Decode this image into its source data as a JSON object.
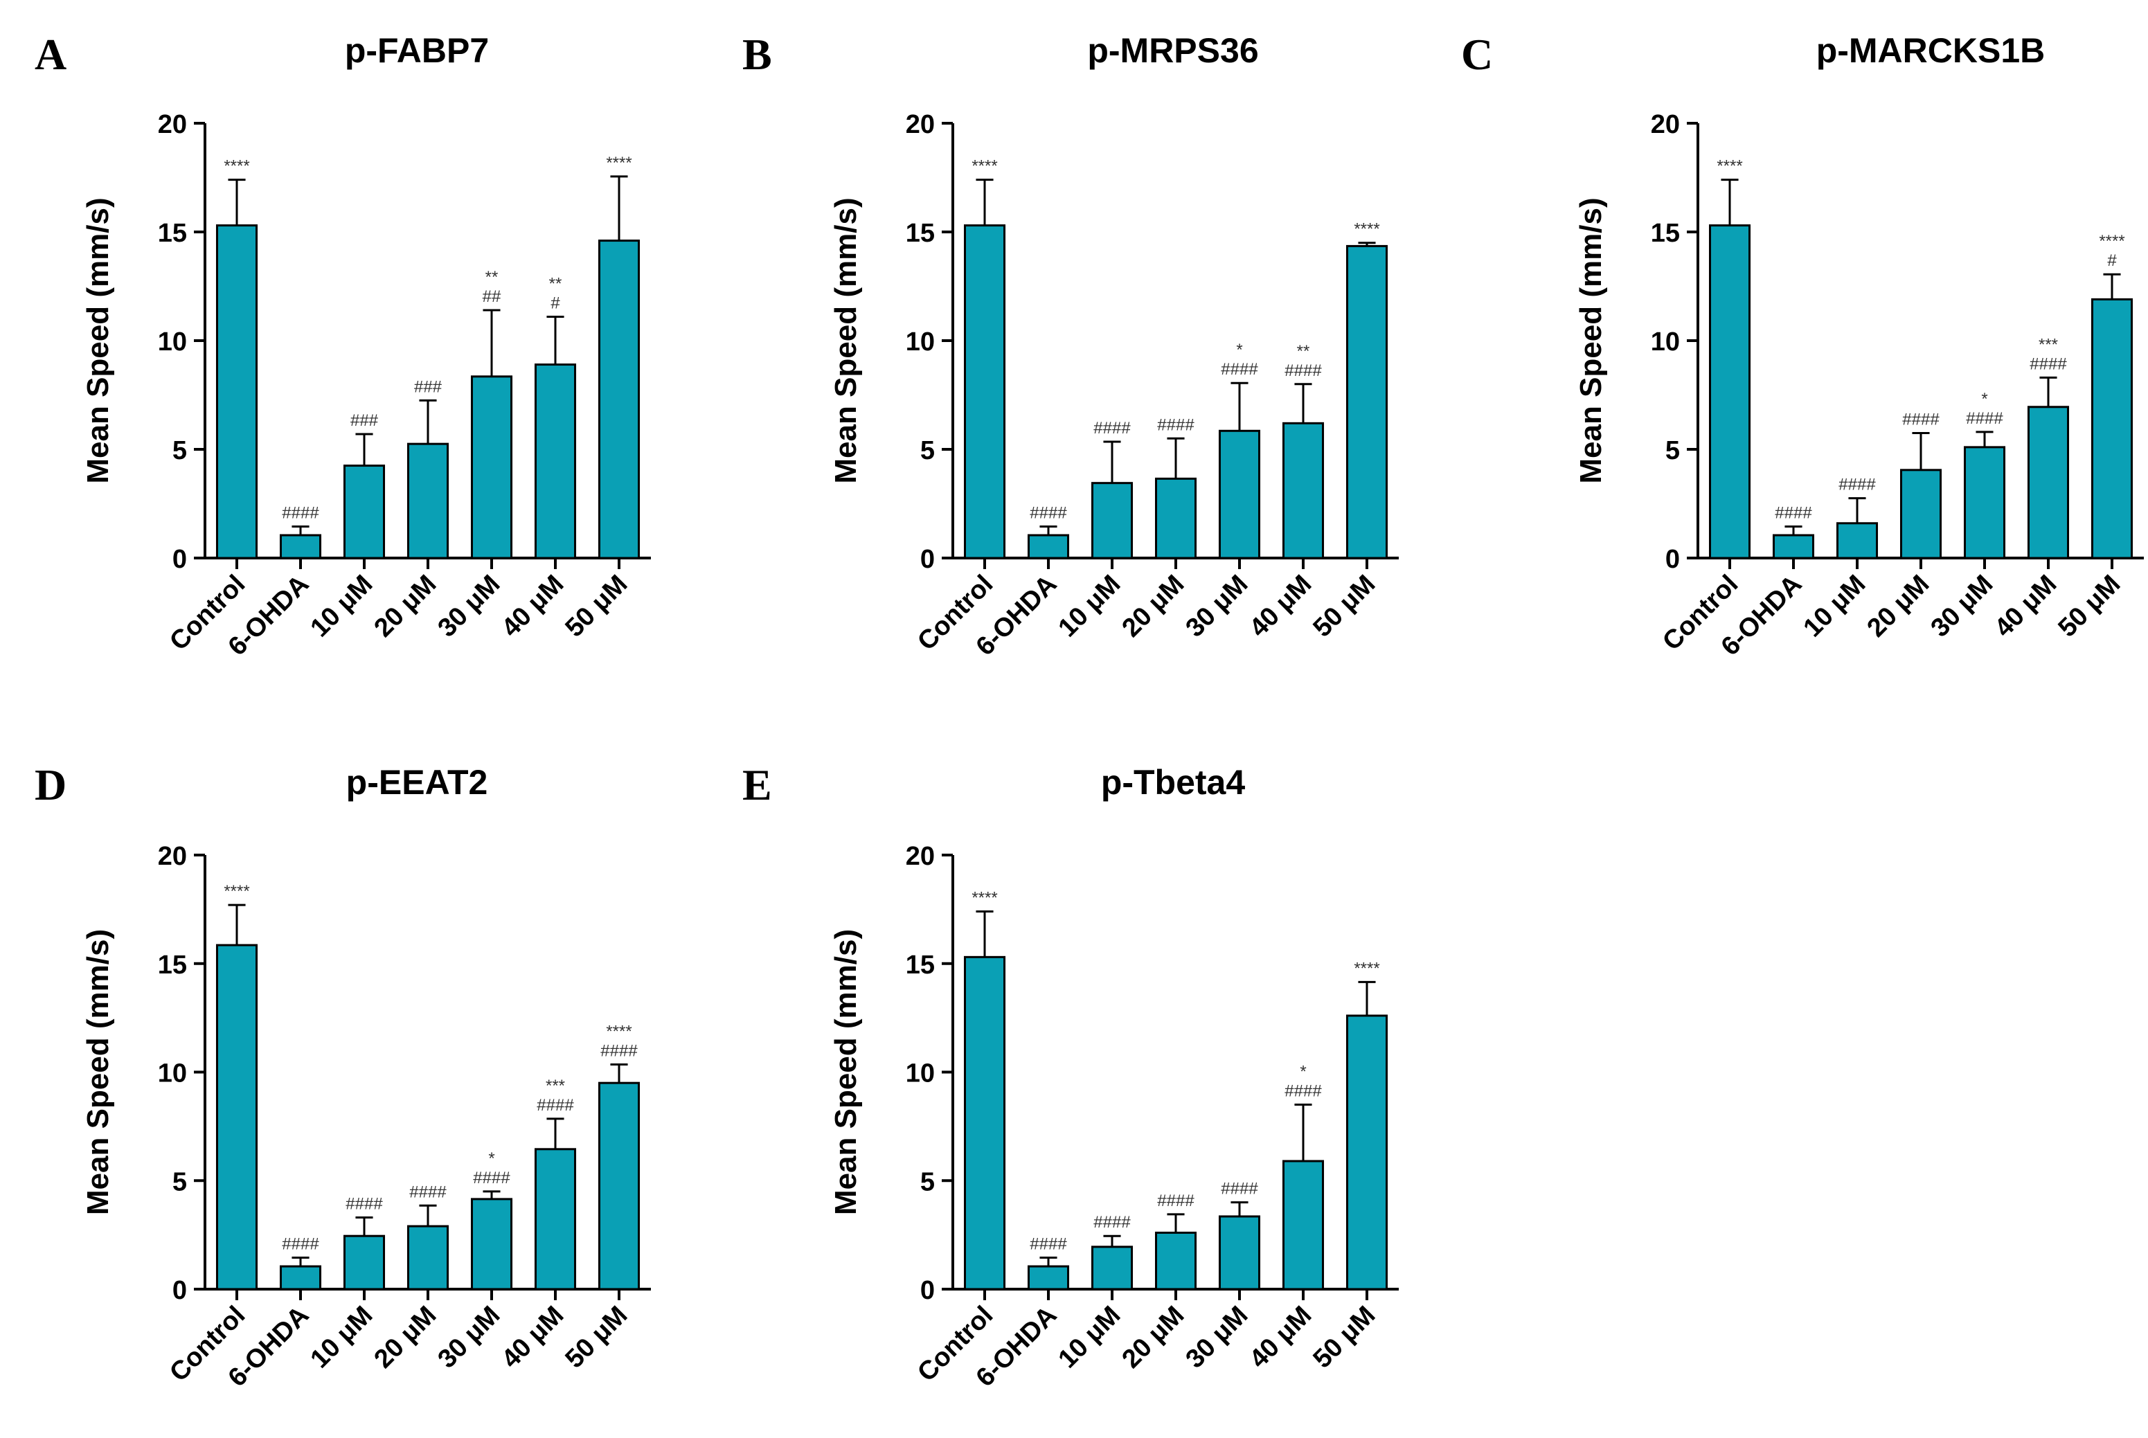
{
  "figure": {
    "background": "#ffffff",
    "bar_color": "#0aa0b5"
  },
  "chart_data": [
    {
      "panel": "A",
      "type": "bar",
      "title": "p-FABP7",
      "ylabel": "Mean Speed (mm/s)",
      "xlabel": "",
      "ylim": [
        0,
        20
      ],
      "yticks": [
        0,
        5,
        10,
        15,
        20
      ],
      "categories": [
        "Control",
        "6-OHDA",
        "10 μM",
        "20 μM",
        "30 μM",
        "40 μM",
        "50 μM"
      ],
      "values": [
        15.3,
        1.05,
        4.25,
        5.25,
        8.35,
        8.9,
        14.6
      ],
      "errors": [
        2.1,
        0.4,
        1.45,
        2.0,
        3.05,
        2.2,
        2.95
      ],
      "annotations": [
        [
          "****"
        ],
        [
          "####"
        ],
        [
          "###"
        ],
        [
          "###"
        ],
        [
          "**",
          "##"
        ],
        [
          "**",
          "#"
        ],
        [
          "****"
        ]
      ]
    },
    {
      "panel": "B",
      "type": "bar",
      "title": "p-MRPS36",
      "ylabel": "Mean Speed (mm/s)",
      "xlabel": "",
      "ylim": [
        0,
        20
      ],
      "yticks": [
        0,
        5,
        10,
        15,
        20
      ],
      "categories": [
        "Control",
        "6-OHDA",
        "10 μM",
        "20 μM",
        "30 μM",
        "40 μM",
        "50 μM"
      ],
      "values": [
        15.3,
        1.05,
        3.45,
        3.65,
        5.85,
        6.2,
        14.35
      ],
      "errors": [
        2.1,
        0.4,
        1.9,
        1.85,
        2.2,
        1.8,
        0.15
      ],
      "annotations": [
        [
          "****"
        ],
        [
          "####"
        ],
        [
          "####"
        ],
        [
          "####"
        ],
        [
          "*",
          "####"
        ],
        [
          "**",
          "####"
        ],
        [
          "****"
        ]
      ]
    },
    {
      "panel": "C",
      "type": "bar",
      "title": "p-MARCKS1B",
      "ylabel": "Mean Speed (mm/s)",
      "xlabel": "",
      "ylim": [
        0,
        20
      ],
      "yticks": [
        0,
        5,
        10,
        15,
        20
      ],
      "categories": [
        "Control",
        "6-OHDA",
        "10 μM",
        "20 μM",
        "30 μM",
        "40 μM",
        "50 μM"
      ],
      "values": [
        15.3,
        1.05,
        1.6,
        4.05,
        5.1,
        6.95,
        11.9
      ],
      "errors": [
        2.1,
        0.4,
        1.15,
        1.7,
        0.7,
        1.35,
        1.15
      ],
      "annotations": [
        [
          "****"
        ],
        [
          "####"
        ],
        [
          "####"
        ],
        [
          "####"
        ],
        [
          "*",
          "####"
        ],
        [
          "***",
          "####"
        ],
        [
          "****",
          "#"
        ]
      ]
    },
    {
      "panel": "D",
      "type": "bar",
      "title": "p-EEAT2",
      "ylabel": "Mean Speed (mm/s)",
      "xlabel": "",
      "ylim": [
        0,
        20
      ],
      "yticks": [
        0,
        5,
        10,
        15,
        20
      ],
      "categories": [
        "Control",
        "6-OHDA",
        "10 μM",
        "20 μM",
        "30 μM",
        "40 μM",
        "50 μM"
      ],
      "values": [
        15.85,
        1.05,
        2.45,
        2.9,
        4.15,
        6.45,
        9.5
      ],
      "errors": [
        1.85,
        0.4,
        0.85,
        0.95,
        0.35,
        1.4,
        0.85
      ],
      "annotations": [
        [
          "****"
        ],
        [
          "####"
        ],
        [
          "####"
        ],
        [
          "####"
        ],
        [
          "*",
          "####"
        ],
        [
          "***",
          "####"
        ],
        [
          "****",
          "####"
        ]
      ]
    },
    {
      "panel": "E",
      "type": "bar",
      "title": "p-Tbeta4",
      "ylabel": "Mean Speed (mm/s)",
      "xlabel": "",
      "ylim": [
        0,
        20
      ],
      "yticks": [
        0,
        5,
        10,
        15,
        20
      ],
      "categories": [
        "Control",
        "6-OHDA",
        "10 μM",
        "20 μM",
        "30 μM",
        "40 μM",
        "50 μM"
      ],
      "values": [
        15.3,
        1.05,
        1.95,
        2.6,
        3.35,
        5.9,
        12.6
      ],
      "errors": [
        2.1,
        0.4,
        0.5,
        0.85,
        0.65,
        2.6,
        1.55
      ],
      "annotations": [
        [
          "****"
        ],
        [
          "####"
        ],
        [
          "####"
        ],
        [
          "####"
        ],
        [
          "####"
        ],
        [
          "*",
          "####"
        ],
        [
          "****"
        ]
      ]
    }
  ]
}
